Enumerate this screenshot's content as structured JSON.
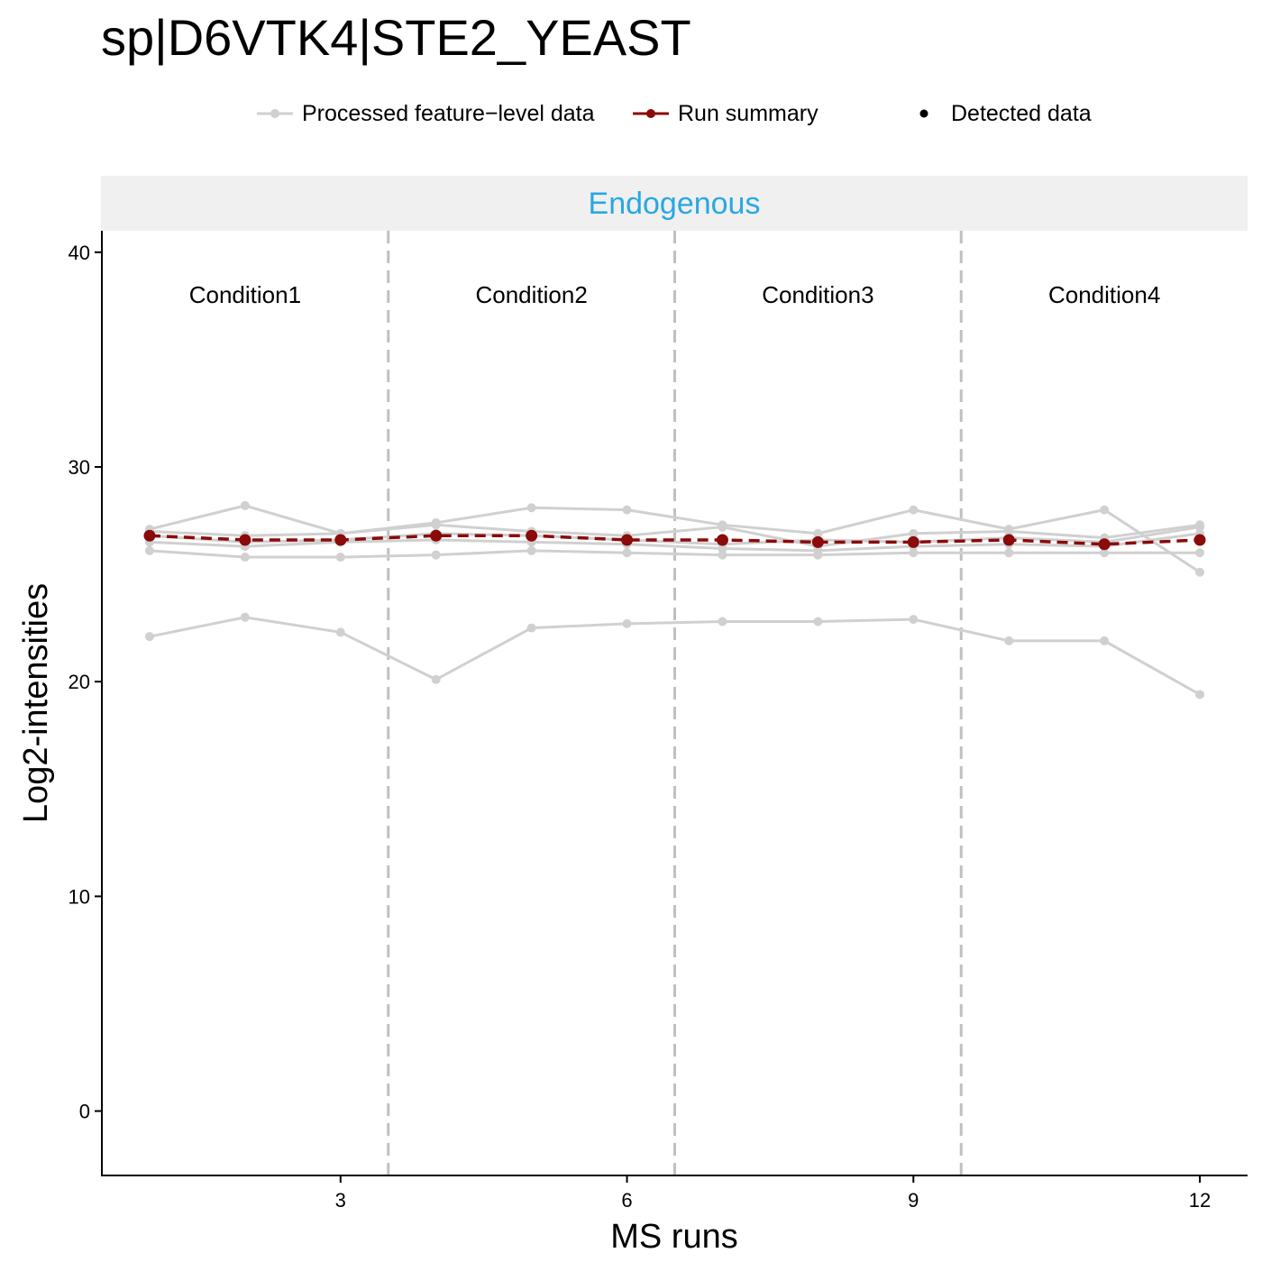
{
  "chart_data": {
    "type": "line",
    "title": "sp|D6VTK4|STE2_YEAST",
    "xlabel": "MS runs",
    "ylabel": "Log2-intensities",
    "panel_label": "Endogenous",
    "panel_label_color": "#29a8e0",
    "xlim": [
      0.5,
      12.5
    ],
    "ylim": [
      -3,
      41
    ],
    "x_ticks": [
      3,
      6,
      9,
      12
    ],
    "y_ticks": [
      0,
      10,
      20,
      30,
      40
    ],
    "condition_boundaries": [
      3.5,
      6.5,
      9.5
    ],
    "conditions": [
      {
        "label": "Condition1",
        "x": 2
      },
      {
        "label": "Condition2",
        "x": 5
      },
      {
        "label": "Condition3",
        "x": 8
      },
      {
        "label": "Condition4",
        "x": 11
      }
    ],
    "legend": {
      "placement": "top",
      "items": [
        {
          "label": "Processed feature−level data",
          "kind": "line-point",
          "color": "#d0d0d0"
        },
        {
          "label": "Run summary",
          "kind": "line-point",
          "color": "#8b0a0a"
        },
        {
          "label": "Detected data",
          "kind": "point",
          "color": "#000000"
        }
      ]
    },
    "x": [
      1,
      2,
      3,
      4,
      5,
      6,
      7,
      8,
      9,
      10,
      11,
      12
    ],
    "feature_series": [
      {
        "name": "feature1",
        "values": [
          27.1,
          28.2,
          26.9,
          27.4,
          28.1,
          28.0,
          27.3,
          26.9,
          28.0,
          27.1,
          28.0,
          25.1
        ]
      },
      {
        "name": "feature2",
        "values": [
          27.0,
          26.8,
          26.9,
          27.3,
          27.0,
          26.8,
          27.2,
          26.3,
          26.9,
          27.0,
          26.7,
          27.3
        ]
      },
      {
        "name": "feature3",
        "values": [
          26.8,
          26.5,
          26.6,
          26.9,
          26.8,
          26.6,
          26.4,
          26.6,
          26.5,
          26.7,
          26.5,
          27.2
        ]
      },
      {
        "name": "feature4",
        "values": [
          26.5,
          26.3,
          26.5,
          26.6,
          26.5,
          26.4,
          26.2,
          26.1,
          26.3,
          26.4,
          26.3,
          26.9
        ]
      },
      {
        "name": "feature5",
        "values": [
          26.1,
          25.8,
          25.8,
          25.9,
          26.1,
          26.0,
          25.9,
          25.9,
          26.0,
          26.0,
          26.0,
          26.0
        ]
      },
      {
        "name": "feature6",
        "values": [
          22.1,
          23.0,
          22.3,
          20.1,
          22.5,
          22.7,
          22.8,
          22.8,
          22.9,
          21.9,
          21.9,
          19.4
        ]
      }
    ],
    "series": [
      {
        "name": "Run summary",
        "values": [
          26.8,
          26.6,
          26.6,
          26.8,
          26.8,
          26.6,
          26.6,
          26.5,
          26.5,
          26.6,
          26.4,
          26.6
        ]
      }
    ],
    "colors": {
      "feature": "#d0d0d0",
      "summary": "#8b0a0a",
      "strip_bg": "#f0f0f0",
      "boundary": "#c0c0c0"
    }
  }
}
